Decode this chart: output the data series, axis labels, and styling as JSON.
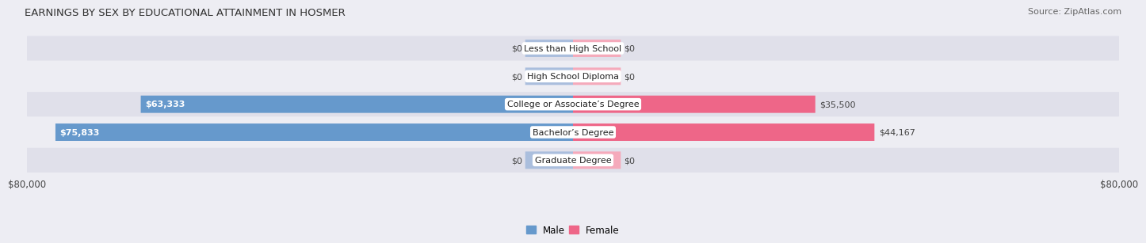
{
  "title": "EARNINGS BY SEX BY EDUCATIONAL ATTAINMENT IN HOSMER",
  "source": "Source: ZipAtlas.com",
  "categories": [
    "Less than High School",
    "High School Diploma",
    "College or Associate’s Degree",
    "Bachelor’s Degree",
    "Graduate Degree"
  ],
  "male_values": [
    0,
    0,
    63333,
    75833,
    0
  ],
  "female_values": [
    0,
    0,
    35500,
    44167,
    0
  ],
  "male_labels": [
    "$0",
    "$0",
    "$63,333",
    "$75,833",
    "$0"
  ],
  "female_labels": [
    "$0",
    "$0",
    "$35,500",
    "$44,167",
    "$0"
  ],
  "male_color": "#6699cc",
  "female_color": "#ee6688",
  "male_color_light": "#aabedd",
  "female_color_light": "#f5aabb",
  "stub_val": 7000,
  "max_val": 80000,
  "x_axis_label_left": "$80,000",
  "x_axis_label_right": "$80,000",
  "bg_light": "#ededf3",
  "bg_dark": "#e0e0ea",
  "title_fontsize": 9.5,
  "source_fontsize": 8,
  "bar_label_fontsize": 8,
  "cat_label_fontsize": 8,
  "axis_fontsize": 8.5
}
